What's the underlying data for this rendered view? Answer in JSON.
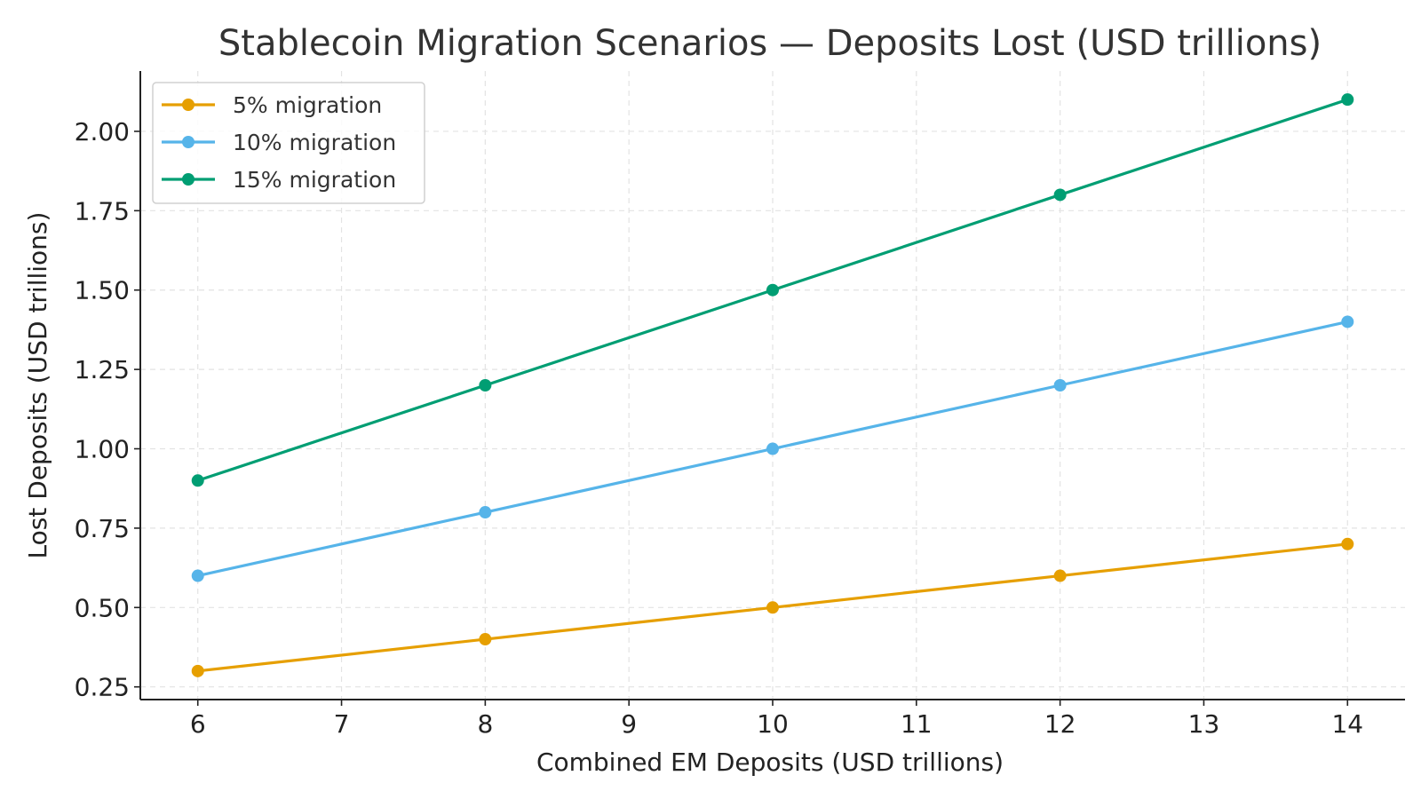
{
  "chart_data": {
    "type": "line",
    "title": "Stablecoin Migration Scenarios — Deposits Lost (USD trillions)",
    "xlabel": "Combined EM Deposits (USD trillions)",
    "ylabel": "Lost Deposits (USD trillions)",
    "x": [
      6,
      8,
      10,
      12,
      14
    ],
    "xlim": [
      5.6,
      14.4
    ],
    "ylim": [
      0.21,
      2.19
    ],
    "xticks": [
      "6",
      "7",
      "8",
      "9",
      "10",
      "11",
      "12",
      "13",
      "14"
    ],
    "yticks": [
      "0.25",
      "0.50",
      "0.75",
      "1.00",
      "1.25",
      "1.50",
      "1.75",
      "2.00"
    ],
    "grid": true,
    "legend_position": "top-left",
    "series": [
      {
        "name": "5% migration",
        "color": "#E69F00",
        "values": [
          0.3,
          0.4,
          0.5,
          0.6,
          0.7
        ]
      },
      {
        "name": "10% migration",
        "color": "#56B4E9",
        "values": [
          0.6,
          0.8,
          1.0,
          1.2,
          1.4
        ]
      },
      {
        "name": "15% migration",
        "color": "#009E73",
        "values": [
          0.9,
          1.2,
          1.5,
          1.8,
          2.1
        ]
      }
    ]
  }
}
